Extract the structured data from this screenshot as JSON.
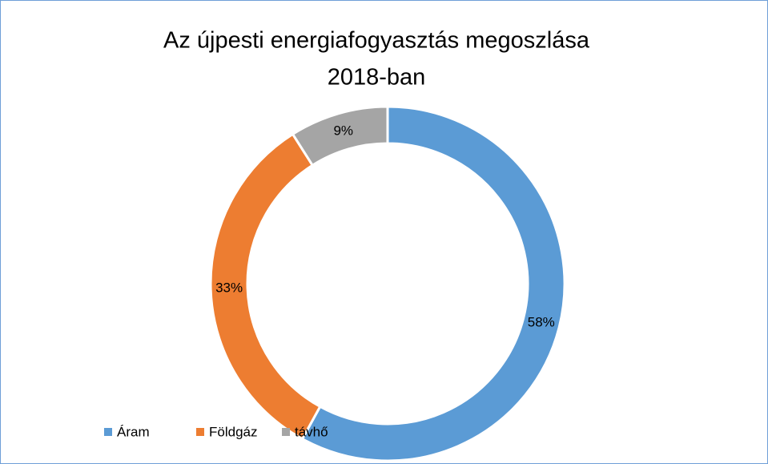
{
  "chart_data": {
    "type": "donut",
    "title": [
      "Az újpesti energiafogyasztás megoszlása",
      "2018-ban"
    ],
    "categories": [
      "Áram",
      "Földgáz",
      "távhő"
    ],
    "values": [
      58,
      33,
      9
    ],
    "value_labels": [
      "58%",
      "33%",
      "9%"
    ],
    "colors": [
      "#5b9bd5",
      "#ed7d31",
      "#a5a5a5"
    ],
    "legend": "bottom-left"
  }
}
